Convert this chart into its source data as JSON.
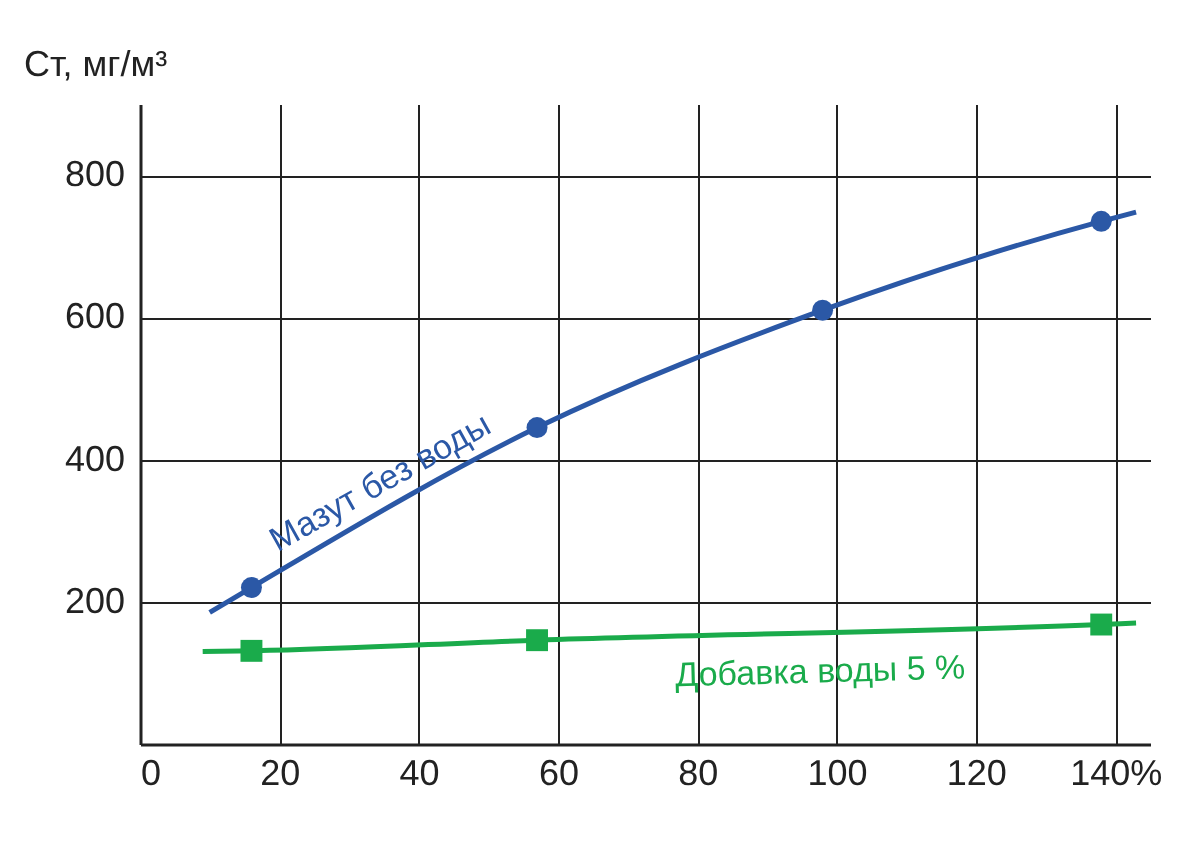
{
  "chart_data": {
    "type": "line",
    "ylabel": "Ст, мг/м³",
    "xlim": [
      0,
      145
    ],
    "xticks": [
      0,
      20,
      40,
      60,
      80,
      100,
      120,
      {
        "value": 140,
        "label": "140%"
      }
    ],
    "ylim": [
      0,
      900
    ],
    "yticks": [
      200,
      400,
      600,
      800
    ],
    "grid": true,
    "series": [
      {
        "name": "Мазут без воды",
        "type": "line",
        "color": "#2b58a6",
        "marker": "none",
        "x": [
          10,
          16,
          57,
          98,
          138,
          143
        ],
        "values": [
          185,
          220,
          445,
          610,
          735,
          748
        ]
      },
      {
        "type": "scatter",
        "color": "#2b58a6",
        "marker": "circle",
        "x": [
          16,
          57,
          98,
          138
        ],
        "values": [
          220,
          445,
          610,
          735
        ]
      },
      {
        "name": "Добавка воды 5 %",
        "type": "line",
        "color": "#1aab4b",
        "marker": "none",
        "x": [
          9,
          16,
          57,
          138,
          143
        ],
        "values": [
          130,
          131,
          146,
          168,
          170
        ]
      },
      {
        "type": "scatter",
        "color": "#1aab4b",
        "marker": "square",
        "x": [
          16,
          57,
          138
        ],
        "values": [
          131,
          146,
          168
        ]
      }
    ]
  }
}
